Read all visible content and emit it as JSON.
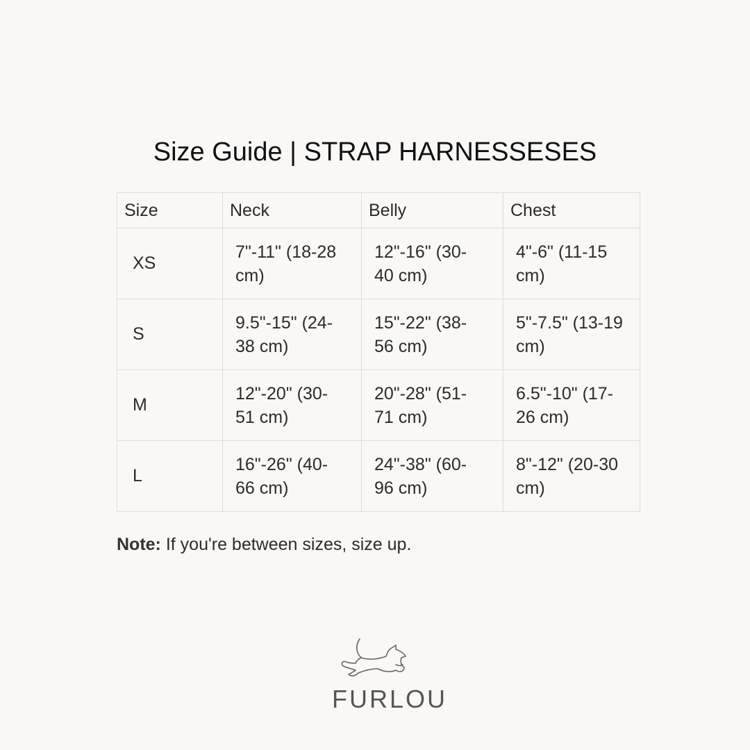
{
  "title": "Size Guide | STRAP HARNESSESES",
  "table": {
    "headers": [
      "Size",
      "Neck",
      "Belly",
      "Chest"
    ],
    "rows": [
      [
        "XS",
        "7\"-11\" (18-28 cm)",
        "12\"-16\" (30-40 cm)",
        "4\"-6\" (11-15 cm)"
      ],
      [
        "S",
        "9.5\"-15\" (24-38 cm)",
        "15\"-22\" (38-56 cm)",
        "5\"-7.5\" (13-19 cm)"
      ],
      [
        "M",
        "12\"-20\" (30-51 cm)",
        "20\"-28\" (51-71 cm)",
        "6.5\"-10\" (17-26 cm)"
      ],
      [
        "L",
        "16\"-26\" (40-66 cm)",
        "24\"-38\" (60-96 cm)",
        "8\"-12\" (20-30 cm)"
      ]
    ]
  },
  "note": {
    "label": "Note:",
    "text": " If you're between sizes, size up."
  },
  "logo": {
    "text": "FURLOU",
    "icon": "running-dog-icon"
  },
  "colors": {
    "background": "#faf8f6",
    "border": "#dedcda",
    "text": "#2b2b2b"
  }
}
